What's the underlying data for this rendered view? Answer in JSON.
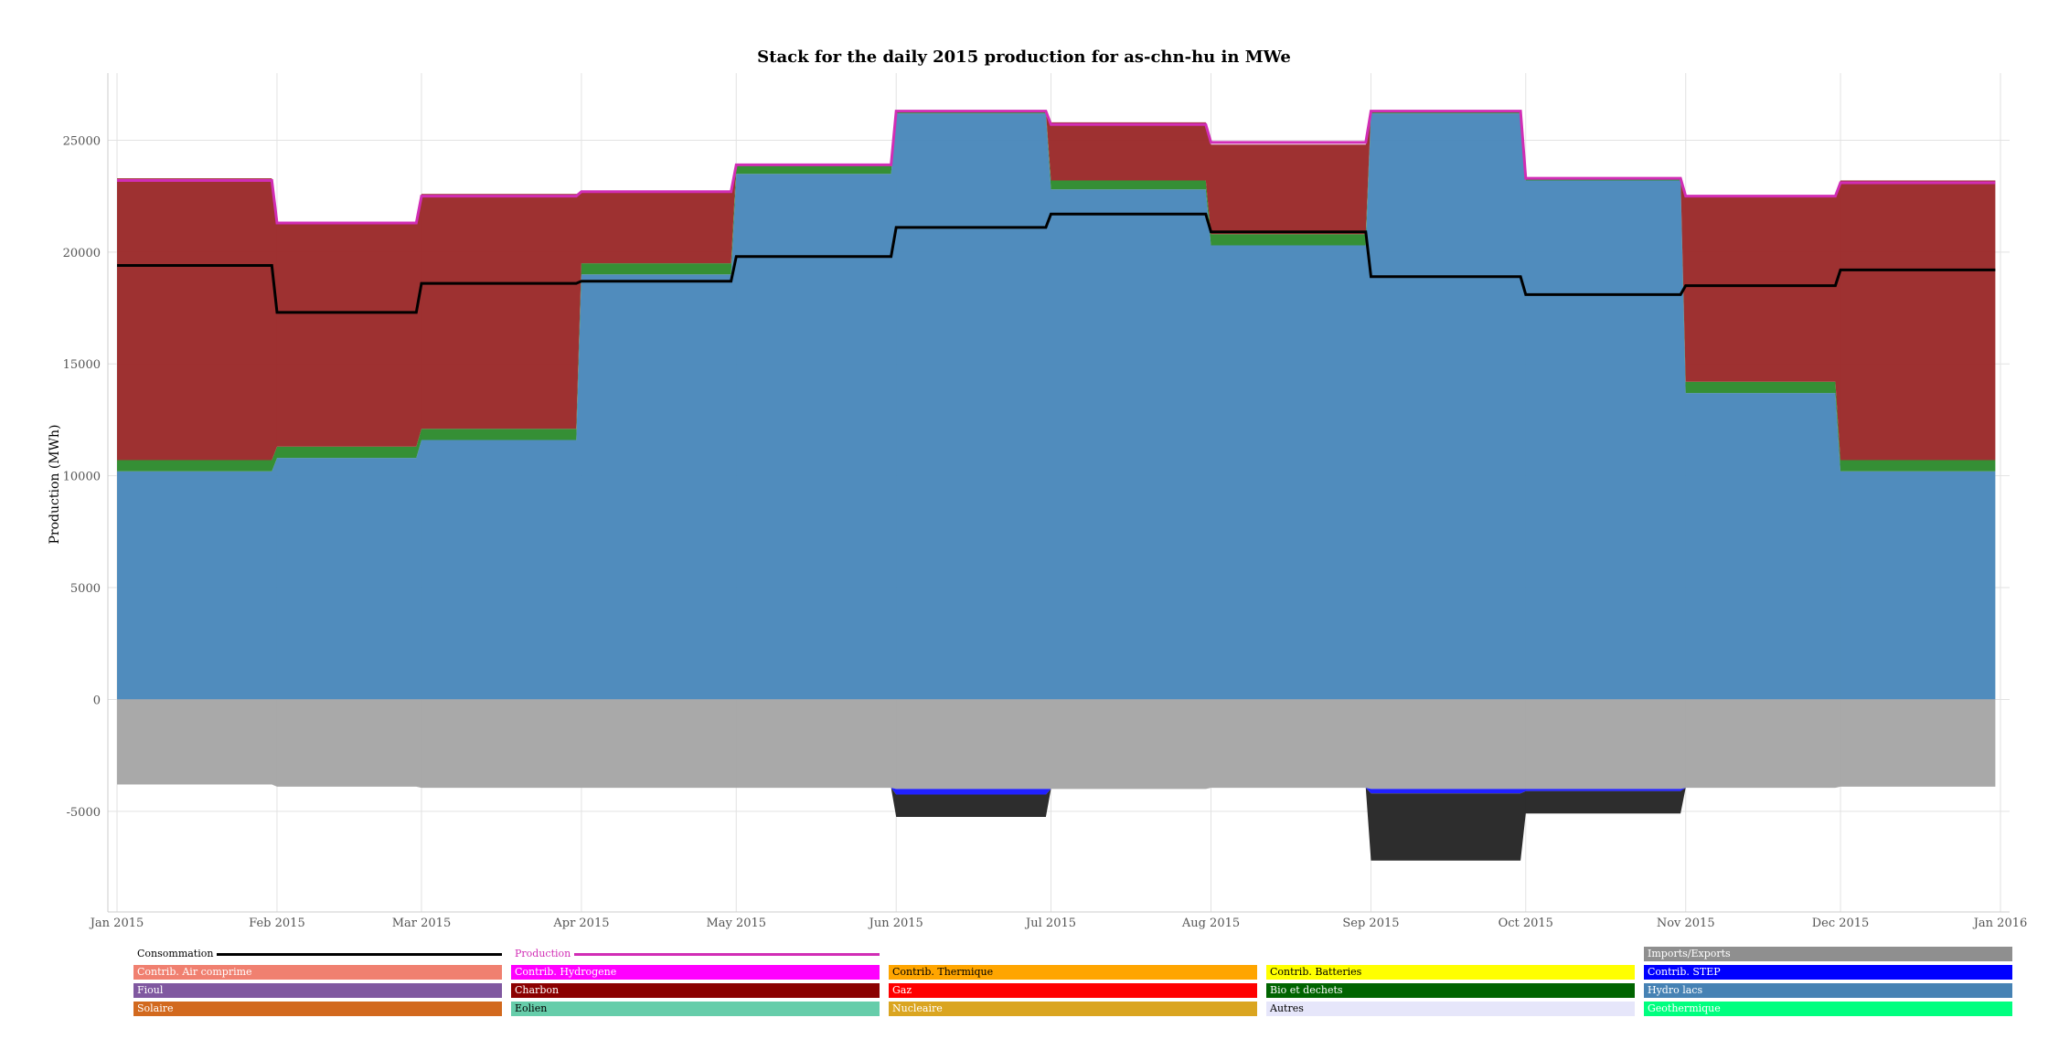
{
  "chart_data": {
    "type": "area",
    "title": "Stack for the daily 2015 production for as-chn-hu in MWe",
    "ylabel": "Production (MWh)",
    "xlabel": "",
    "ylim": [
      -9500,
      28000
    ],
    "yticks": [
      -5000,
      0,
      5000,
      10000,
      15000,
      20000,
      25000
    ],
    "x_range": [
      "2015-01-01",
      "2016-01-01"
    ],
    "xticks": [
      {
        "date": "2015-01-01",
        "label": "Jan 2015"
      },
      {
        "date": "2015-02-01",
        "label": "Feb 2015"
      },
      {
        "date": "2015-03-01",
        "label": "Mar 2015"
      },
      {
        "date": "2015-04-01",
        "label": "Apr 2015"
      },
      {
        "date": "2015-05-01",
        "label": "May 2015"
      },
      {
        "date": "2015-06-01",
        "label": "Jun 2015"
      },
      {
        "date": "2015-07-01",
        "label": "Jul 2015"
      },
      {
        "date": "2015-08-01",
        "label": "Aug 2015"
      },
      {
        "date": "2015-09-01",
        "label": "Sep 2015"
      },
      {
        "date": "2015-10-01",
        "label": "Oct 2015"
      },
      {
        "date": "2015-11-01",
        "label": "Nov 2015"
      },
      {
        "date": "2015-12-01",
        "label": "Dec 2015"
      },
      {
        "date": "2016-01-01",
        "label": "Jan 2016"
      }
    ],
    "grid": true,
    "months": [
      "Jan",
      "Feb",
      "Mar",
      "Apr",
      "May",
      "Jun",
      "Jul",
      "Aug",
      "Sep",
      "Oct",
      "Nov",
      "Dec"
    ],
    "series": [
      {
        "name": "Hydro lacs",
        "color": "#4a88bb",
        "monthly_values": [
          10200,
          10800,
          11600,
          19000,
          23500,
          26200,
          22800,
          20300,
          26200,
          23200,
          13700,
          10200
        ]
      },
      {
        "name": "Bio et dechets",
        "color": "#2e8b2e",
        "monthly_values": [
          500,
          500,
          500,
          500,
          400,
          100,
          400,
          500,
          100,
          100,
          500,
          500
        ]
      },
      {
        "name": "Charbon",
        "color": "#9b2a2a",
        "monthly_values": [
          12600,
          10000,
          10500,
          3200,
          0,
          0,
          2600,
          4000,
          0,
          0,
          8300,
          12500
        ]
      },
      {
        "name": "Imports/Exports",
        "color": "#a6a6a6",
        "monthly_values": [
          -3800,
          -3900,
          -3950,
          -3950,
          -3950,
          -4000,
          -4000,
          -3950,
          -4000,
          -4000,
          -3950,
          -3900
        ]
      },
      {
        "name": "Contrib. STEP",
        "color": "#1a1aff",
        "monthly_values": [
          0,
          0,
          0,
          0,
          0,
          -250,
          0,
          0,
          -200,
          -100,
          0,
          0
        ]
      },
      {
        "name": "Autres",
        "color": "#262626",
        "monthly_values": [
          0,
          0,
          0,
          0,
          0,
          -1000,
          0,
          0,
          -3000,
          -1000,
          0,
          0
        ]
      }
    ],
    "production": {
      "name": "Production",
      "color": "#d12db5",
      "monthly_values": [
        23200,
        21300,
        22500,
        22700,
        23900,
        26300,
        25700,
        24900,
        26300,
        23300,
        22500,
        23100
      ]
    },
    "consumption": {
      "name": "Consommation",
      "color": "#000000",
      "monthly_values": [
        19400,
        17300,
        18600,
        18700,
        19800,
        21100,
        21700,
        20900,
        18900,
        18100,
        18500,
        19200
      ]
    }
  },
  "legend": {
    "line_items": [
      {
        "label": "Consommation",
        "color": "#000000",
        "text_color": "#000000"
      },
      {
        "label": "Production",
        "color": "#d12db5",
        "text_color": "#d12db5"
      }
    ],
    "imports_exports": {
      "label": "Imports/Exports",
      "color": "#8f8f8f"
    },
    "rows": [
      [
        {
          "label": "Contrib. Air comprime",
          "color": "#f08070",
          "text_color": "#ffffff"
        },
        {
          "label": "Contrib. Hydrogene",
          "color": "#ff00ff",
          "text_color": "#ffffff"
        },
        {
          "label": "Contrib. Thermique",
          "color": "#ffa500",
          "text_color": "#000000"
        },
        {
          "label": "Contrib. Batteries",
          "color": "#ffff00",
          "text_color": "#000000"
        },
        {
          "label": "Contrib. STEP",
          "color": "#0000ff",
          "text_color": "#ffffff"
        }
      ],
      [
        {
          "label": "Fioul",
          "color": "#8058a0",
          "text_color": "#ffffff"
        },
        {
          "label": "Charbon",
          "color": "#8b0000",
          "text_color": "#ffffff"
        },
        {
          "label": "Gaz",
          "color": "#ff0000",
          "text_color": "#ffffff"
        },
        {
          "label": "Bio et dechets",
          "color": "#006400",
          "text_color": "#ffffff"
        },
        {
          "label": "Hydro lacs",
          "color": "#4682b4",
          "text_color": "#ffffff"
        }
      ],
      [
        {
          "label": "Solaire",
          "color": "#d2691e",
          "text_color": "#ffffff"
        },
        {
          "label": "Eolien",
          "color": "#66cdaa",
          "text_color": "#000000"
        },
        {
          "label": "Nucleaire",
          "color": "#daa520",
          "text_color": "#ffffff"
        },
        {
          "label": "Autres",
          "color": "#e6e6fa",
          "text_color": "#000000"
        },
        {
          "label": "Geothermique",
          "color": "#00ff7f",
          "text_color": "#ffffff"
        }
      ]
    ]
  }
}
